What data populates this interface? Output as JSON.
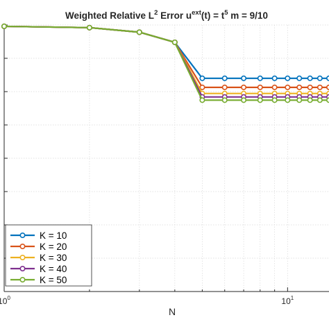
{
  "chart_data": {
    "type": "line",
    "title_parts": {
      "a": "Weighted Relative L",
      "a_sup": "2",
      "b": " Error   u",
      "b_sup": "ext",
      "c": "(t) = t",
      "c_sup": "5",
      "d": "   m = 9/10"
    },
    "xlabel": "N",
    "ylabel": "",
    "x_scale": "log",
    "xlim": [
      1,
      14
    ],
    "ylim": [
      0,
      1
    ],
    "x_tick_labels": [
      {
        "value": 1,
        "base": "10",
        "exp": "0"
      },
      {
        "value": 10,
        "base": "10",
        "exp": "1"
      }
    ],
    "grid": true,
    "legend_position": "bottom-left",
    "x": [
      1,
      2,
      3,
      4,
      5,
      6,
      7,
      8,
      9,
      10,
      11,
      12,
      13,
      14
    ],
    "series": [
      {
        "name": "K = 10",
        "color": "#0072bd",
        "values": [
          0.995,
          0.99,
          0.973,
          0.935,
          0.8,
          0.8,
          0.8,
          0.8,
          0.8,
          0.8,
          0.8,
          0.8,
          0.8,
          0.8
        ]
      },
      {
        "name": "K = 20",
        "color": "#d95319",
        "values": [
          0.995,
          0.99,
          0.973,
          0.935,
          0.766,
          0.766,
          0.766,
          0.766,
          0.766,
          0.766,
          0.766,
          0.766,
          0.766,
          0.766
        ]
      },
      {
        "name": "K = 30",
        "color": "#edb120",
        "values": [
          0.995,
          0.99,
          0.973,
          0.935,
          0.743,
          0.743,
          0.743,
          0.743,
          0.743,
          0.743,
          0.743,
          0.743,
          0.743,
          0.743
        ]
      },
      {
        "name": "K = 40",
        "color": "#7e2f8e",
        "values": [
          0.995,
          0.99,
          0.973,
          0.935,
          0.73,
          0.73,
          0.73,
          0.73,
          0.73,
          0.73,
          0.73,
          0.73,
          0.73,
          0.73
        ]
      },
      {
        "name": "K = 50",
        "color": "#77ac30",
        "values": [
          0.995,
          0.99,
          0.973,
          0.935,
          0.718,
          0.718,
          0.718,
          0.718,
          0.718,
          0.718,
          0.718,
          0.718,
          0.718,
          0.718
        ]
      }
    ]
  }
}
